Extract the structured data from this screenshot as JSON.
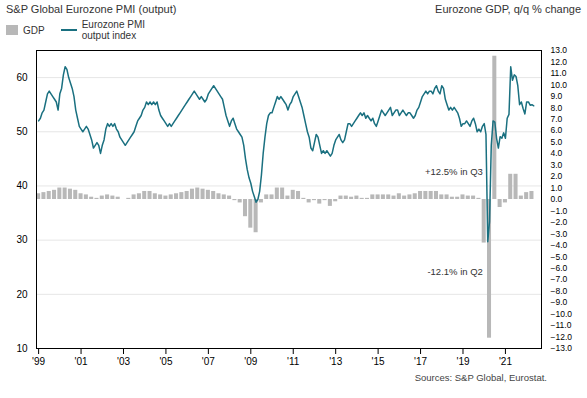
{
  "chart_data": {
    "type": "combo",
    "ylabel": "S&P Global Eurozone PMI (output)",
    "y2label": "Eurozone GDP, q/q % change",
    "caption": "Sources: S&P Global, Eurostat.",
    "xlim": [
      1998.9,
      2022.7
    ],
    "xticks": [
      {
        "value": 1999,
        "label": "'99"
      },
      {
        "value": 2001,
        "label": "'01"
      },
      {
        "value": 2003,
        "label": "'03"
      },
      {
        "value": 2005,
        "label": "'05"
      },
      {
        "value": 2007,
        "label": "'07"
      },
      {
        "value": 2009,
        "label": "'09"
      },
      {
        "value": 2011,
        "label": "'11"
      },
      {
        "value": 2013,
        "label": "'13"
      },
      {
        "value": 2015,
        "label": "'15"
      },
      {
        "value": 2017,
        "label": "'17"
      },
      {
        "value": 2019,
        "label": "'19"
      },
      {
        "value": 2021,
        "label": "'21"
      }
    ],
    "ylim": [
      10,
      65
    ],
    "yticks": [
      10,
      20,
      30,
      40,
      50,
      60
    ],
    "y2lim": [
      -13.0,
      13.0
    ],
    "y2ticks": [
      {
        "value": 13.0,
        "label": "13.0"
      },
      {
        "value": 12.0,
        "label": "12.0"
      },
      {
        "value": 11.0,
        "label": "11.0"
      },
      {
        "value": 10.0,
        "label": "10.0"
      },
      {
        "value": 9.0,
        "label": "9.0"
      },
      {
        "value": 8.0,
        "label": "8.0"
      },
      {
        "value": 7.0,
        "label": "7.0"
      },
      {
        "value": 6.0,
        "label": "6.0"
      },
      {
        "value": 5.0,
        "label": "5.0"
      },
      {
        "value": 4.0,
        "label": "4.0"
      },
      {
        "value": 3.0,
        "label": "3.0"
      },
      {
        "value": 2.0,
        "label": "2.0"
      },
      {
        "value": 1.0,
        "label": "1.0"
      },
      {
        "value": 0.0,
        "label": "0.0"
      },
      {
        "value": -1.0,
        "label": "−1.0"
      },
      {
        "value": -2.0,
        "label": "−2.0"
      },
      {
        "value": -3.0,
        "label": "−3.0"
      },
      {
        "value": -4.0,
        "label": "−4.0"
      },
      {
        "value": -5.0,
        "label": "−5.0"
      },
      {
        "value": -6.0,
        "label": "−6.0"
      },
      {
        "value": -7.0,
        "label": "−7.0"
      },
      {
        "value": -8.0,
        "label": "−8.0"
      },
      {
        "value": -9.0,
        "label": "−9.0"
      },
      {
        "value": -10.0,
        "label": "−10.0"
      },
      {
        "value": -11.0,
        "label": "−11.0"
      },
      {
        "value": -12.0,
        "label": "−12.0"
      },
      {
        "value": -13.0,
        "label": "−13.0"
      }
    ],
    "grid": true,
    "annotations": [
      {
        "text": "+12.5% in Q3",
        "x": 2020.22,
        "y": 2.75,
        "axis": "y2"
      },
      {
        "text": "-12.1% in Q2",
        "x": 2020.22,
        "y": -6.55,
        "axis": "y2"
      }
    ],
    "series": [
      {
        "name": "GDP",
        "type": "bar",
        "axis": "y2",
        "color": "#b8b8b8",
        "x": [
          1999.0,
          1999.25,
          1999.5,
          1999.75,
          2000.0,
          2000.25,
          2000.5,
          2000.75,
          2001.0,
          2001.25,
          2001.5,
          2001.75,
          2002.0,
          2002.25,
          2002.5,
          2002.75,
          2003.0,
          2003.25,
          2003.5,
          2003.75,
          2004.0,
          2004.25,
          2004.5,
          2004.75,
          2005.0,
          2005.25,
          2005.5,
          2005.75,
          2006.0,
          2006.25,
          2006.5,
          2006.75,
          2007.0,
          2007.25,
          2007.5,
          2007.75,
          2008.0,
          2008.25,
          2008.5,
          2008.75,
          2009.0,
          2009.25,
          2009.5,
          2009.75,
          2010.0,
          2010.25,
          2010.5,
          2010.75,
          2011.0,
          2011.25,
          2011.5,
          2011.75,
          2012.0,
          2012.25,
          2012.5,
          2012.75,
          2013.0,
          2013.25,
          2013.5,
          2013.75,
          2014.0,
          2014.25,
          2014.5,
          2014.75,
          2015.0,
          2015.25,
          2015.5,
          2015.75,
          2016.0,
          2016.25,
          2016.5,
          2016.75,
          2017.0,
          2017.25,
          2017.5,
          2017.75,
          2018.0,
          2018.25,
          2018.5,
          2018.75,
          2019.0,
          2019.25,
          2019.5,
          2019.75,
          2020.0,
          2020.25,
          2020.5,
          2020.75,
          2021.0,
          2021.25,
          2021.5,
          2021.75,
          2022.0,
          2022.25
        ],
        "values": [
          0.5,
          0.6,
          0.7,
          0.8,
          1.0,
          1.0,
          0.9,
          0.8,
          0.5,
          0.4,
          0.2,
          0.1,
          0.3,
          0.4,
          0.3,
          0.2,
          0.0,
          0.1,
          0.4,
          0.5,
          0.7,
          0.7,
          0.5,
          0.4,
          0.3,
          0.4,
          0.5,
          0.6,
          0.7,
          0.9,
          1.0,
          0.9,
          0.8,
          0.7,
          0.5,
          0.4,
          0.3,
          -0.1,
          -0.3,
          -1.5,
          -2.5,
          -2.9,
          -0.3,
          0.4,
          0.4,
          1.0,
          1.0,
          0.3,
          0.8,
          0.7,
          0.1,
          -0.3,
          -0.1,
          -0.4,
          -0.1,
          -0.6,
          -0.2,
          0.3,
          0.3,
          0.2,
          0.3,
          0.1,
          0.1,
          0.4,
          0.4,
          0.4,
          0.4,
          0.3,
          0.5,
          0.3,
          0.4,
          0.5,
          0.7,
          0.7,
          0.7,
          0.7,
          0.4,
          0.4,
          0.2,
          0.2,
          0.4,
          0.3,
          0.3,
          0.1,
          -3.8,
          -12.1,
          12.5,
          -0.7,
          -0.3,
          2.2,
          2.2,
          0.3,
          0.6,
          0.7
        ]
      },
      {
        "name": "Eurozone PMI\noutput index",
        "type": "line",
        "axis": "y",
        "color": "#1a7080",
        "x": [
          1999.0,
          1999.083,
          1999.167,
          1999.25,
          1999.333,
          1999.417,
          1999.5,
          1999.583,
          1999.667,
          1999.75,
          1999.833,
          1999.917,
          2000.0,
          2000.083,
          2000.167,
          2000.25,
          2000.333,
          2000.417,
          2000.5,
          2000.583,
          2000.667,
          2000.75,
          2000.833,
          2000.917,
          2001.0,
          2001.083,
          2001.167,
          2001.25,
          2001.333,
          2001.417,
          2001.5,
          2001.583,
          2001.667,
          2001.75,
          2001.833,
          2001.917,
          2002.0,
          2002.083,
          2002.167,
          2002.25,
          2002.333,
          2002.417,
          2002.5,
          2002.583,
          2002.667,
          2002.75,
          2002.833,
          2002.917,
          2003.0,
          2003.083,
          2003.167,
          2003.25,
          2003.333,
          2003.417,
          2003.5,
          2003.583,
          2003.667,
          2003.75,
          2003.833,
          2003.917,
          2004.0,
          2004.083,
          2004.167,
          2004.25,
          2004.333,
          2004.417,
          2004.5,
          2004.583,
          2004.667,
          2004.75,
          2004.833,
          2004.917,
          2005.0,
          2005.083,
          2005.167,
          2005.25,
          2005.333,
          2005.417,
          2005.5,
          2005.583,
          2005.667,
          2005.75,
          2005.833,
          2005.917,
          2006.0,
          2006.083,
          2006.167,
          2006.25,
          2006.333,
          2006.417,
          2006.5,
          2006.583,
          2006.667,
          2006.75,
          2006.833,
          2006.917,
          2007.0,
          2007.083,
          2007.167,
          2007.25,
          2007.333,
          2007.417,
          2007.5,
          2007.583,
          2007.667,
          2007.75,
          2007.833,
          2007.917,
          2008.0,
          2008.083,
          2008.167,
          2008.25,
          2008.333,
          2008.417,
          2008.5,
          2008.583,
          2008.667,
          2008.75,
          2008.833,
          2008.917,
          2009.0,
          2009.083,
          2009.167,
          2009.25,
          2009.333,
          2009.417,
          2009.5,
          2009.583,
          2009.667,
          2009.75,
          2009.833,
          2009.917,
          2010.0,
          2010.083,
          2010.167,
          2010.25,
          2010.333,
          2010.417,
          2010.5,
          2010.583,
          2010.667,
          2010.75,
          2010.833,
          2010.917,
          2011.0,
          2011.083,
          2011.167,
          2011.25,
          2011.333,
          2011.417,
          2011.5,
          2011.583,
          2011.667,
          2011.75,
          2011.833,
          2011.917,
          2012.0,
          2012.083,
          2012.167,
          2012.25,
          2012.333,
          2012.417,
          2012.5,
          2012.583,
          2012.667,
          2012.75,
          2012.833,
          2012.917,
          2013.0,
          2013.083,
          2013.167,
          2013.25,
          2013.333,
          2013.417,
          2013.5,
          2013.583,
          2013.667,
          2013.75,
          2013.833,
          2013.917,
          2014.0,
          2014.083,
          2014.167,
          2014.25,
          2014.333,
          2014.417,
          2014.5,
          2014.583,
          2014.667,
          2014.75,
          2014.833,
          2014.917,
          2015.0,
          2015.083,
          2015.167,
          2015.25,
          2015.333,
          2015.417,
          2015.5,
          2015.583,
          2015.667,
          2015.75,
          2015.833,
          2015.917,
          2016.0,
          2016.083,
          2016.167,
          2016.25,
          2016.333,
          2016.417,
          2016.5,
          2016.583,
          2016.667,
          2016.75,
          2016.833,
          2016.917,
          2017.0,
          2017.083,
          2017.167,
          2017.25,
          2017.333,
          2017.417,
          2017.5,
          2017.583,
          2017.667,
          2017.75,
          2017.833,
          2017.917,
          2018.0,
          2018.083,
          2018.167,
          2018.25,
          2018.333,
          2018.417,
          2018.5,
          2018.583,
          2018.667,
          2018.75,
          2018.833,
          2018.917,
          2019.0,
          2019.083,
          2019.167,
          2019.25,
          2019.333,
          2019.417,
          2019.5,
          2019.583,
          2019.667,
          2019.75,
          2019.833,
          2019.917,
          2020.0,
          2020.083,
          2020.167,
          2020.25,
          2020.333,
          2020.417,
          2020.5,
          2020.583,
          2020.667,
          2020.75,
          2020.833,
          2020.917,
          2021.0,
          2021.083,
          2021.167,
          2021.25,
          2021.333,
          2021.417,
          2021.5,
          2021.583,
          2021.667,
          2021.75,
          2021.833,
          2021.917,
          2022.0,
          2022.083,
          2022.167,
          2022.25,
          2022.333
        ],
        "values": [
          52.0,
          52.5,
          53.5,
          54.0,
          55.5,
          57.0,
          57.5,
          57.0,
          56.5,
          56.0,
          55.5,
          54.0,
          57.0,
          58.0,
          60.5,
          62.0,
          61.5,
          60.0,
          59.0,
          58.0,
          56.5,
          54.0,
          52.5,
          51.0,
          50.5,
          50.0,
          50.5,
          51.0,
          50.5,
          49.5,
          48.5,
          47.0,
          47.5,
          48.0,
          47.5,
          46.0,
          47.5,
          48.5,
          50.5,
          51.5,
          51.0,
          51.5,
          51.0,
          51.5,
          50.5,
          50.0,
          49.0,
          48.5,
          48.0,
          47.5,
          48.0,
          48.5,
          49.0,
          49.5,
          50.0,
          51.0,
          52.0,
          52.5,
          53.0,
          54.0,
          54.5,
          55.5,
          55.0,
          55.5,
          55.0,
          55.5,
          55.0,
          55.5,
          54.0,
          53.0,
          52.5,
          52.0,
          51.5,
          51.0,
          51.5,
          51.0,
          51.5,
          52.0,
          52.5,
          53.0,
          53.5,
          54.0,
          54.5,
          55.0,
          55.5,
          56.0,
          56.5,
          57.0,
          57.5,
          57.0,
          56.5,
          56.0,
          56.5,
          56.0,
          55.5,
          56.0,
          57.0,
          57.5,
          58.0,
          58.5,
          58.0,
          57.5,
          57.0,
          56.5,
          56.0,
          54.5,
          53.0,
          52.0,
          51.0,
          52.0,
          52.5,
          51.5,
          50.5,
          50.0,
          49.5,
          49.0,
          47.5,
          45.0,
          43.0,
          41.5,
          40.5,
          39.0,
          38.0,
          37.0,
          37.5,
          39.0,
          42.0,
          46.0,
          49.0,
          51.5,
          53.0,
          53.5,
          53.5,
          54.5,
          55.5,
          56.5,
          56.0,
          56.5,
          56.0,
          55.5,
          55.0,
          54.0,
          55.0,
          55.5,
          56.5,
          57.0,
          57.5,
          56.5,
          55.5,
          54.5,
          53.0,
          51.5,
          50.0,
          49.0,
          47.0,
          46.5,
          48.0,
          49.5,
          49.0,
          47.5,
          46.0,
          46.5,
          46.0,
          46.5,
          46.0,
          45.5,
          46.0,
          47.5,
          48.5,
          49.0,
          49.5,
          48.5,
          48.0,
          48.5,
          50.0,
          51.5,
          51.5,
          51.0,
          51.5,
          52.0,
          52.5,
          53.0,
          53.5,
          53.0,
          53.5,
          52.5,
          53.0,
          52.5,
          52.0,
          52.5,
          51.5,
          51.0,
          52.0,
          53.0,
          54.0,
          53.5,
          53.0,
          53.5,
          54.0,
          54.5,
          53.0,
          53.5,
          54.0,
          54.0,
          53.0,
          53.5,
          54.0,
          53.5,
          53.0,
          53.5,
          53.5,
          53.0,
          52.5,
          53.0,
          54.0,
          54.5,
          55.5,
          56.5,
          57.0,
          57.5,
          57.0,
          57.5,
          57.5,
          57.0,
          58.0,
          58.5,
          57.5,
          57.0,
          58.5,
          58.0,
          56.0,
          55.0,
          54.0,
          54.5,
          54.0,
          54.5,
          54.0,
          53.5,
          52.5,
          51.0,
          51.5,
          51.5,
          52.0,
          51.5,
          51.0,
          52.0,
          52.5,
          51.5,
          50.0,
          50.5,
          50.0,
          51.0,
          51.5,
          49.5,
          29.7,
          33.4,
          47.5,
          52.0,
          51.8,
          48.8,
          47.0,
          49.1,
          48.8,
          49.8,
          48.8,
          52.5,
          53.2,
          62.0,
          59.5,
          60.5,
          60.2,
          58.5,
          55.0,
          55.5,
          54.3,
          53.3,
          55.5,
          55.5,
          54.9,
          55.0,
          54.8
        ]
      }
    ]
  }
}
